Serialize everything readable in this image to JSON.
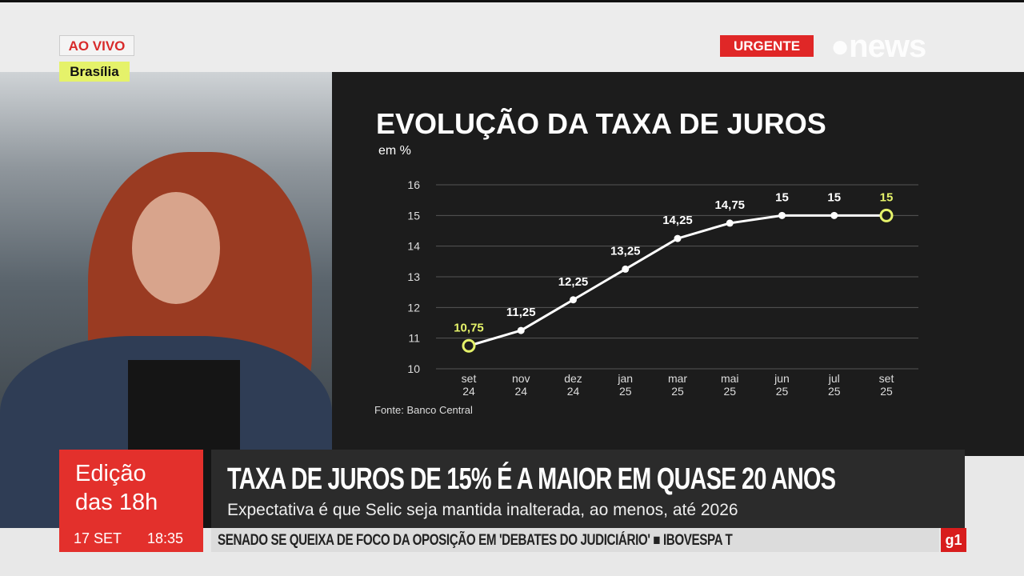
{
  "badges": {
    "live": "AO VIVO",
    "location": "Brasília",
    "urgent": "URGENTE",
    "logo": "GloboNews"
  },
  "chart_data": {
    "type": "line",
    "title": "EVOLUÇÃO DA TAXA DE JUROS",
    "ylabel": "em %",
    "source": "Fonte: Banco Central",
    "ylim": [
      10,
      16
    ],
    "yticks": [
      "10",
      "11",
      "12",
      "13",
      "14",
      "15",
      "16"
    ],
    "categories": [
      "set 24",
      "nov 24",
      "dez 24",
      "jan 25",
      "mar 25",
      "mai 25",
      "jun 25",
      "jul 25",
      "set 25"
    ],
    "values": [
      10.75,
      11.25,
      12.25,
      13.25,
      14.25,
      14.75,
      15,
      15,
      15
    ],
    "labels": [
      "10,75",
      "11,25",
      "12,25",
      "13,25",
      "14,25",
      "14,75",
      "15",
      "15",
      "15"
    ],
    "grid": true,
    "colors": {
      "line": "#ffffff",
      "highlight": "#e5f26a",
      "grid": "#555555"
    }
  },
  "lower_third": {
    "edition_line1": "Edição",
    "edition_line2": "das 18h",
    "date": "17 SET",
    "time": "18:35",
    "headline": "TAXA DE JUROS DE 15% É A MAIOR EM QUASE 20 ANOS",
    "subheadline": "Expectativa é que Selic seja mantida inalterada, ao menos, até 2026"
  },
  "ticker": {
    "text": "SENADO SE QUEIXA DE FOCO DA OPOSIÇÃO EM 'DEBATES DO JUDICIÁRIO'  ■  IBOVESPA T",
    "badge": "g1"
  }
}
